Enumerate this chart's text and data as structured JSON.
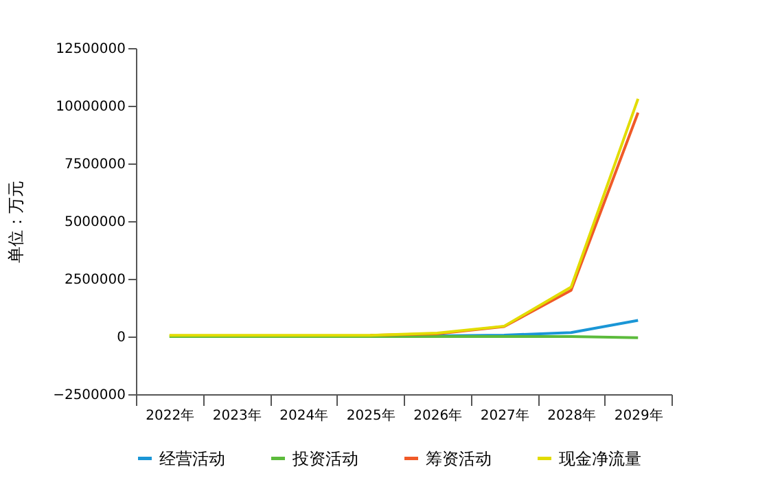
{
  "chart_data": {
    "type": "line",
    "ylabel": "单位：万元",
    "categories": [
      "2022年",
      "2023年",
      "2024年",
      "2025年",
      "2026年",
      "2027年",
      "2028年",
      "2029年"
    ],
    "series": [
      {
        "name": "经营活动",
        "color": "#1a96d6",
        "values": [
          null,
          null,
          null,
          0,
          30000,
          60000,
          170000,
          700000
        ]
      },
      {
        "name": "投资活动",
        "color": "#5cbb3c",
        "values": [
          0,
          0,
          0,
          0,
          0,
          0,
          0,
          -50000
        ]
      },
      {
        "name": "筹资活动",
        "color": "#f05a28",
        "values": [
          null,
          null,
          null,
          50000,
          120000,
          430000,
          2000000,
          9700000
        ]
      },
      {
        "name": "现金净流量",
        "color": "#e2dc00",
        "values": [
          50000,
          50000,
          50000,
          50000,
          150000,
          450000,
          2140000,
          10300000
        ]
      }
    ],
    "ylim": [
      -2500000,
      12500000
    ],
    "yticks": [
      -2500000,
      0,
      2500000,
      5000000,
      7500000,
      10000000,
      12500000
    ],
    "grid": false,
    "legend": "bottom",
    "marker": "none",
    "line_style": "solid"
  }
}
